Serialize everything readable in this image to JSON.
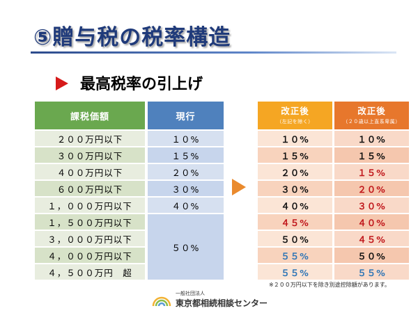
{
  "slide": {
    "title": "⑤贈与税の税率構造",
    "subtitle": "最高税率の引上げ"
  },
  "left_table": {
    "header_amount": "課税価額",
    "header_current": "現行",
    "rows": [
      {
        "amount": "２００万円以下",
        "rate": "１０%"
      },
      {
        "amount": "３００万円以下",
        "rate": "１５%"
      },
      {
        "amount": "４００万円以下",
        "rate": "２０%"
      },
      {
        "amount": "６００万円以下",
        "rate": "３０%"
      },
      {
        "amount": "１，０００万円以下",
        "rate": "４０%"
      },
      {
        "amount": "１，５００万円以下"
      },
      {
        "amount": "３，０００万円以下"
      },
      {
        "amount": "４，０００万円以下"
      },
      {
        "amount": "４，５００万円　超"
      }
    ],
    "merged_rate": "５０%"
  },
  "right_table": {
    "col1_title": "改正後",
    "col1_sub": "（左記を除く）",
    "col2_title": "改正後",
    "col2_sub": "（２０歳以上直系卑属）",
    "rows": [
      {
        "a": "１０%",
        "a_color": "black",
        "b": "１０%",
        "b_color": "black"
      },
      {
        "a": "１５%",
        "a_color": "black",
        "b": "１５%",
        "b_color": "black"
      },
      {
        "a": "２０%",
        "a_color": "black",
        "b": "１５%",
        "b_color": "red"
      },
      {
        "a": "３０%",
        "a_color": "black",
        "b": "２０%",
        "b_color": "red"
      },
      {
        "a": "４０%",
        "a_color": "black",
        "b": "３０%",
        "b_color": "red"
      },
      {
        "a": "４５%",
        "a_color": "red",
        "b": "４０%",
        "b_color": "red"
      },
      {
        "a": "５０%",
        "a_color": "black",
        "b": "４５%",
        "b_color": "red"
      },
      {
        "a": "５５%",
        "a_color": "blue",
        "b": "５０%",
        "b_color": "black"
      },
      {
        "a": "５５%",
        "a_color": "blue",
        "b": "５５%",
        "b_color": "blue"
      }
    ]
  },
  "note": "※２００万円以下を除き別途控除額があります。",
  "logo": {
    "small": "一般社団法人",
    "big": "東京都相続相談センター"
  },
  "colors": {
    "title": "#1f3a7a",
    "amount_header": "#6aa84f",
    "current_header": "#4f81bd",
    "revised_header_1": "#f5a623",
    "revised_header_2": "#e7772c",
    "red": "#c0151a",
    "blue": "#2e75b6",
    "arrow_red": "#d61a1a",
    "arrow_orange": "#ea8a2d"
  }
}
